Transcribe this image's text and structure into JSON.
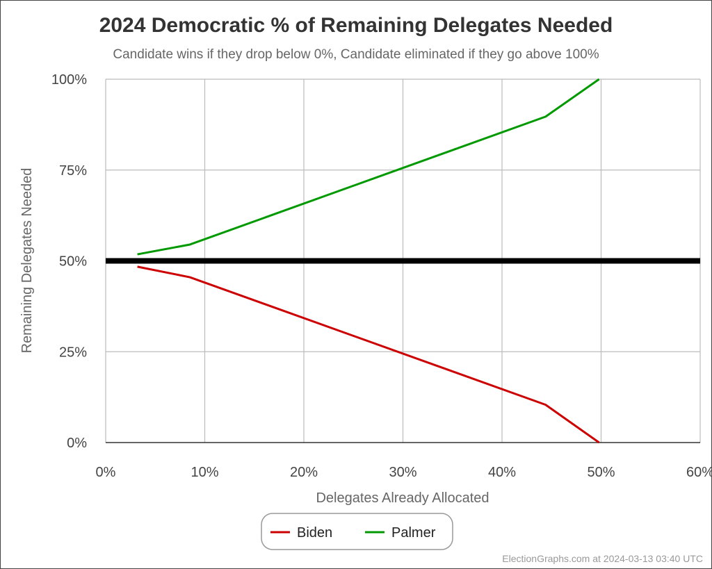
{
  "chart_data": {
    "type": "line",
    "title": "2024 Democratic % of Remaining Delegates Needed",
    "subtitle": "Candidate wins if they drop below 0%, Candidate eliminated if they go above 100%",
    "xlabel": "Delegates Already Allocated",
    "ylabel": "Remaining Delegates Needed",
    "xlim": [
      0,
      60
    ],
    "ylim": [
      0,
      100
    ],
    "x_ticks": [
      "0%",
      "10%",
      "20%",
      "30%",
      "40%",
      "50%",
      "60%"
    ],
    "y_ticks": [
      "0%",
      "25%",
      "50%",
      "75%",
      "100%"
    ],
    "grid": true,
    "reference_line": 50,
    "legend_position": "bottom",
    "series": [
      {
        "name": "Biden",
        "color": "#cc0000",
        "x": [
          3.2,
          8.5,
          44.4,
          49.8
        ],
        "y": [
          48.4,
          45.5,
          10.4,
          0
        ]
      },
      {
        "name": "Palmer",
        "color": "#009900",
        "x": [
          3.2,
          8.5,
          44.4,
          49.8
        ],
        "y": [
          51.8,
          54.5,
          89.7,
          100
        ]
      }
    ],
    "footer": "ElectionGraphs.com at 2024-03-13 03:40 UTC"
  }
}
